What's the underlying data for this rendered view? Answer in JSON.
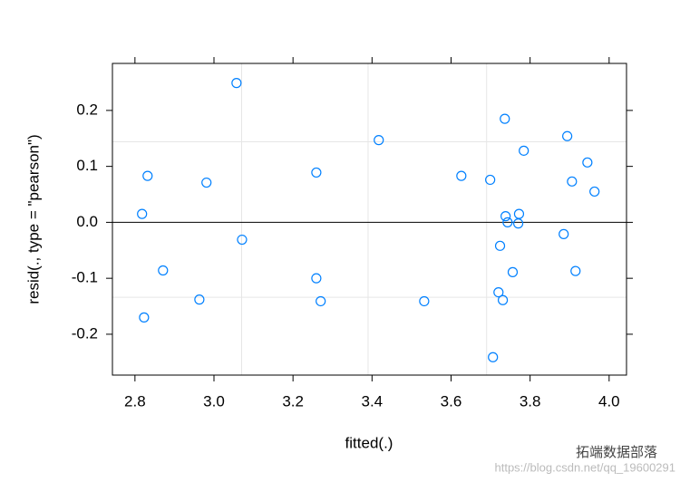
{
  "chart_data": {
    "type": "scatter",
    "xlabel": "fitted(.)",
    "ylabel": "resid(., type = \"pearson\")",
    "x": [
      3.057,
      2.818,
      2.832,
      2.823,
      2.871,
      2.981,
      2.963,
      3.071,
      3.259,
      3.259,
      3.27,
      3.417,
      3.532,
      3.626,
      3.699,
      3.706,
      3.736,
      3.784,
      3.738,
      3.743,
      3.772,
      3.77,
      3.724,
      3.756,
      3.72,
      3.731,
      3.894,
      3.945,
      3.906,
      3.963,
      3.885,
      3.915
    ],
    "series": [
      {
        "color": "#0080ff",
        "values": [
          0.249,
          0.015,
          0.083,
          -0.17,
          -0.086,
          0.071,
          -0.138,
          -0.031,
          0.089,
          -0.1,
          -0.141,
          0.147,
          -0.141,
          0.083,
          0.076,
          -0.241,
          0.185,
          0.128,
          0.011,
          0.0,
          0.015,
          -0.002,
          -0.042,
          -0.089,
          -0.125,
          -0.139,
          0.154,
          0.107,
          0.073,
          0.055,
          -0.021,
          -0.087
        ]
      }
    ],
    "xlim": [
      2.743,
      4.044
    ],
    "ylim": [
      -0.273,
      0.284
    ],
    "xticks": [
      {
        "value": 2.8,
        "label": "2.8"
      },
      {
        "value": 3.0,
        "label": "3.0"
      },
      {
        "value": 3.2,
        "label": "3.2"
      },
      {
        "value": 3.4,
        "label": "3.4"
      },
      {
        "value": 3.6,
        "label": "3.6"
      },
      {
        "value": 3.8,
        "label": "3.8"
      },
      {
        "value": 4.0,
        "label": "4.0"
      }
    ],
    "yticks": [
      {
        "value": -0.2,
        "label": "-0.2"
      },
      {
        "value": -0.1,
        "label": "-0.1"
      },
      {
        "value": 0.0,
        "label": "0.0"
      },
      {
        "value": 0.1,
        "label": "0.1"
      },
      {
        "value": 0.2,
        "label": "0.2"
      }
    ],
    "zero_line": 0,
    "ref_vlines": [
      3.07,
      3.39,
      3.69
    ],
    "ref_hlines": [
      0.144,
      -0.134
    ]
  },
  "watermark": {
    "brand": "拓端数据部落",
    "url": "https://blog.csdn.net/qq_19600291"
  }
}
